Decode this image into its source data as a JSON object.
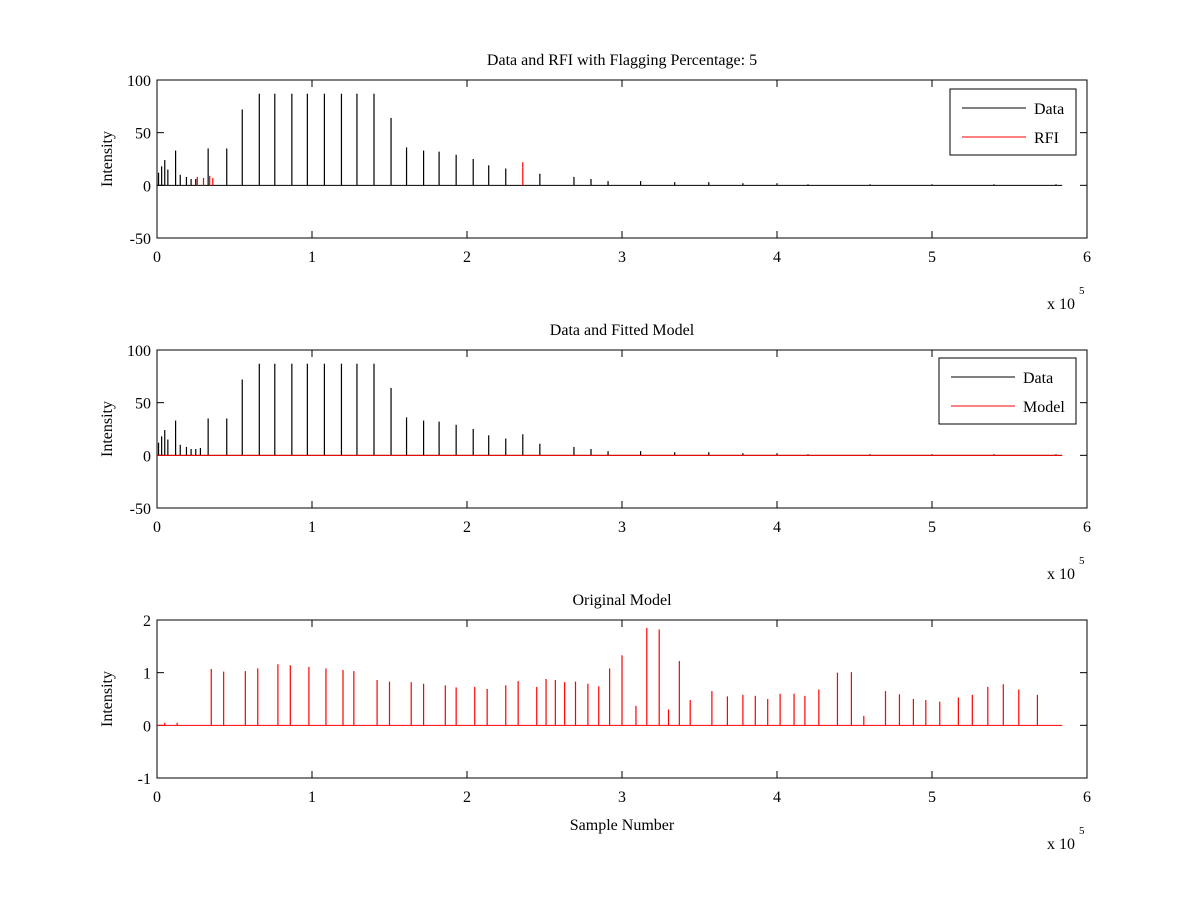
{
  "chart_data": [
    {
      "type": "line",
      "title": "Data and RFI with Flagging Percentage: 5",
      "xlabel": "",
      "ylabel": "Intensity",
      "xlim": [
        0,
        600000
      ],
      "ylim": [
        -50,
        100
      ],
      "x_ticks": [
        "0",
        "1",
        "2",
        "3",
        "4",
        "5",
        "6"
      ],
      "y_ticks": [
        "-50",
        "0",
        "50",
        "100"
      ],
      "x_exponent": {
        "base": "x 10",
        "power": "5"
      },
      "grid": false,
      "legend_position": "top-right",
      "series": [
        {
          "name": "Data",
          "color": "#000000",
          "x": [
            1000,
            3000,
            5000,
            7000,
            12000,
            15000,
            19000,
            22000,
            25000,
            33000,
            45000,
            55000,
            66000,
            76000,
            87000,
            97000,
            108000,
            119000,
            129000,
            140000,
            151000,
            161000,
            172000,
            182000,
            193000,
            204000,
            214000,
            225000,
            247000,
            269000,
            280000,
            291000,
            312000,
            334000,
            356000,
            378000,
            400000,
            420000,
            460000,
            500000,
            540000,
            580000
          ],
          "values": [
            12,
            18,
            24,
            15,
            33,
            10,
            8,
            6,
            6,
            35,
            35,
            72,
            87,
            87,
            87,
            87,
            87,
            87,
            87,
            87,
            64,
            36,
            33,
            32,
            29,
            25,
            19,
            16,
            11,
            8,
            6,
            4,
            4,
            3,
            3,
            2,
            2,
            1,
            1,
            1,
            1,
            1
          ]
        },
        {
          "name": "RFI",
          "color": "#ff0000",
          "x": [
            26000,
            30000,
            34000,
            36000,
            236000
          ],
          "values": [
            8,
            7,
            9,
            7,
            22
          ]
        }
      ]
    },
    {
      "type": "line",
      "title": "Data and Fitted Model",
      "xlabel": "",
      "ylabel": "Intensity",
      "xlim": [
        0,
        600000
      ],
      "ylim": [
        -50,
        100
      ],
      "x_ticks": [
        "0",
        "1",
        "2",
        "3",
        "4",
        "5",
        "6"
      ],
      "y_ticks": [
        "-50",
        "0",
        "50",
        "100"
      ],
      "x_exponent": {
        "base": "x 10",
        "power": "5"
      },
      "grid": false,
      "legend_position": "top-right",
      "series": [
        {
          "name": "Data",
          "color": "#000000",
          "x": [
            1000,
            3000,
            5000,
            7000,
            12000,
            15000,
            19000,
            22000,
            25000,
            28000,
            33000,
            45000,
            55000,
            66000,
            76000,
            87000,
            97000,
            108000,
            119000,
            129000,
            140000,
            151000,
            161000,
            172000,
            182000,
            193000,
            204000,
            214000,
            225000,
            236000,
            247000,
            269000,
            280000,
            291000,
            312000,
            334000,
            356000,
            378000,
            400000,
            420000,
            460000,
            500000,
            540000,
            580000
          ],
          "values": [
            12,
            18,
            24,
            15,
            33,
            10,
            8,
            6,
            6,
            7,
            35,
            35,
            72,
            87,
            87,
            87,
            87,
            87,
            87,
            87,
            87,
            64,
            36,
            33,
            32,
            29,
            25,
            19,
            16,
            20,
            11,
            8,
            6,
            4,
            4,
            3,
            3,
            2,
            2,
            1,
            1,
            1,
            1,
            1
          ]
        },
        {
          "name": "Model",
          "color": "#ff0000",
          "x": [
            0,
            584000
          ],
          "values": [
            0,
            0
          ]
        }
      ]
    },
    {
      "type": "line",
      "title": "Original Model",
      "xlabel": "Sample Number",
      "ylabel": "Intensity",
      "xlim": [
        0,
        600000
      ],
      "ylim": [
        -1,
        2
      ],
      "x_ticks": [
        "0",
        "1",
        "2",
        "3",
        "4",
        "5",
        "6"
      ],
      "y_ticks": [
        "-1",
        "0",
        "1",
        "2"
      ],
      "x_exponent": {
        "base": "x 10",
        "power": "5"
      },
      "grid": false,
      "legend_position": "none",
      "series": [
        {
          "name": "",
          "color": "#ff0000",
          "x": [
            5000,
            13000,
            35000,
            43000,
            57000,
            65000,
            78000,
            86000,
            98000,
            109000,
            120000,
            127000,
            142000,
            150000,
            164000,
            172000,
            186000,
            193000,
            205000,
            213000,
            225000,
            233000,
            245000,
            251000,
            257000,
            263000,
            270000,
            278000,
            285000,
            292000,
            300000,
            309000,
            316000,
            324000,
            330000,
            337000,
            344000,
            358000,
            368000,
            378000,
            386000,
            394000,
            402000,
            411000,
            418000,
            427000,
            439000,
            448000,
            456000,
            470000,
            479000,
            488000,
            496000,
            505000,
            517000,
            526000,
            536000,
            546000,
            556000,
            568000
          ],
          "values": [
            0.05,
            0.05,
            1.07,
            1.02,
            1.03,
            1.08,
            1.16,
            1.14,
            1.11,
            1.08,
            1.05,
            1.03,
            0.86,
            0.83,
            0.82,
            0.79,
            0.76,
            0.72,
            0.73,
            0.69,
            0.76,
            0.84,
            0.73,
            0.88,
            0.86,
            0.82,
            0.83,
            0.79,
            0.74,
            1.08,
            1.33,
            0.37,
            1.85,
            1.82,
            0.3,
            1.22,
            0.48,
            0.65,
            0.55,
            0.58,
            0.56,
            0.5,
            0.6,
            0.6,
            0.56,
            0.68,
            1.0,
            1.01,
            0.18,
            0.65,
            0.59,
            0.5,
            0.48,
            0.45,
            0.53,
            0.58,
            0.73,
            0.78,
            0.68,
            0.58
          ]
        }
      ]
    }
  ]
}
